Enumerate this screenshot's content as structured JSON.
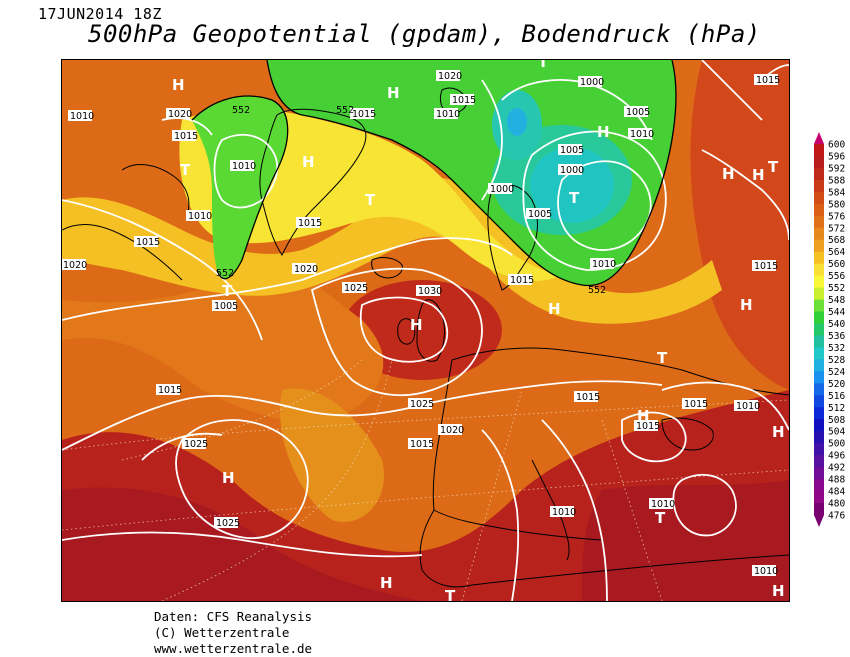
{
  "header": {
    "date_label": "17JUN2014 18Z",
    "title": "500hPa Geopotential (gpdam), Bodendruck (hPa)"
  },
  "credits": {
    "line1": "Daten: CFS Reanalysis",
    "line2": "(C) Wetterzentrale",
    "line3": "www.wetterzentrale.de"
  },
  "legend": {
    "levels": [
      "600",
      "596",
      "592",
      "588",
      "584",
      "580",
      "576",
      "572",
      "568",
      "564",
      "560",
      "556",
      "552",
      "548",
      "544",
      "540",
      "536",
      "532",
      "528",
      "524",
      "520",
      "516",
      "512",
      "508",
      "504",
      "500",
      "496",
      "492",
      "488",
      "484",
      "480",
      "476"
    ],
    "colors": [
      "#c8006e",
      "#c01818",
      "#b81c1c",
      "#c02a1a",
      "#c83a18",
      "#d24c16",
      "#dc5e14",
      "#e07018",
      "#e6881c",
      "#eea020",
      "#f4c024",
      "#f8e034",
      "#f8f838",
      "#c8f030",
      "#6ce036",
      "#30d038",
      "#24c868",
      "#20c0a0",
      "#20c8c8",
      "#20b0e0",
      "#1890f0",
      "#1468e8",
      "#1048e0",
      "#0c28d8",
      "#1010c0",
      "#2810b0",
      "#4010a8",
      "#5810a0",
      "#700c98",
      "#880890",
      "#900888",
      "#780070"
    ]
  },
  "map": {
    "pressure_labels": [
      "1010",
      "1015",
      "1020",
      "1015",
      "1010",
      "1015",
      "1020",
      "1010",
      "1005",
      "1020",
      "1025",
      "1030",
      "1015",
      "1025",
      "1020",
      "1015",
      "1025",
      "1025",
      "1010",
      "1010",
      "1015",
      "1015",
      "1010",
      "1015",
      "1010",
      "1015",
      "1020",
      "1015",
      "1010",
      "1015",
      "1005",
      "1000",
      "1000",
      "1005",
      "1005",
      "1010",
      "1010",
      "1000",
      "1015",
      "1015",
      "552",
      "552",
      "552",
      "552",
      "1020",
      "1015",
      "1010"
    ],
    "height_labels": [
      "552",
      "552",
      "552",
      "552"
    ],
    "high_markers": [
      "H",
      "H",
      "H",
      "H",
      "H",
      "H",
      "H",
      "H",
      "H",
      "H",
      "H",
      "H",
      "H",
      "H"
    ],
    "low_markers": [
      "T",
      "T",
      "T",
      "T",
      "T",
      "T",
      "T",
      "T",
      "T",
      "T",
      "T"
    ]
  }
}
